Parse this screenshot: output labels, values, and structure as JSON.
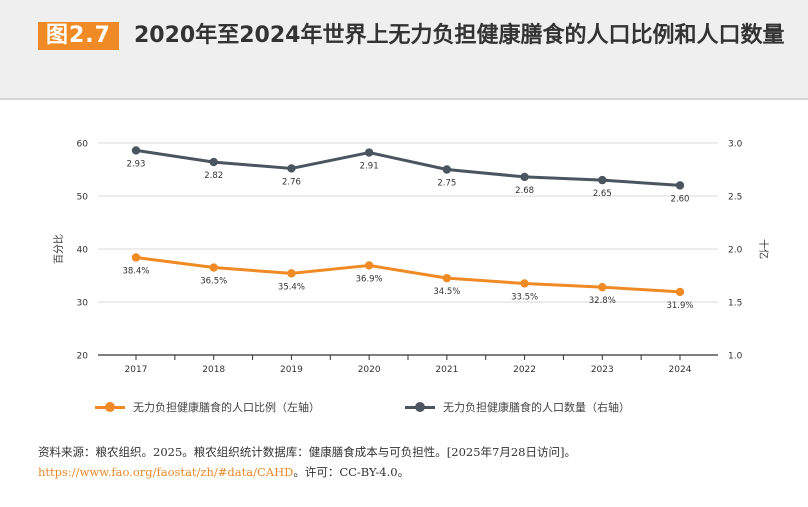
{
  "header": {
    "figure_label": "图2.7",
    "title": "2020年至2024年世界上无力负担健康膳食的人口比例和人口数量"
  },
  "colors": {
    "accent": "#f08a24",
    "percent_series": "#f08a24",
    "count_series": "#4a5560",
    "grid": "#d9d9d9",
    "axis": "#333333"
  },
  "chart_data": {
    "type": "line",
    "categories": [
      "2017",
      "2018",
      "2019",
      "2020",
      "2021",
      "2022",
      "2023",
      "2024"
    ],
    "y_left": {
      "label": "百分比",
      "ticks": [
        "20",
        "30",
        "40",
        "50",
        "60"
      ],
      "range": [
        20,
        60
      ]
    },
    "y_right": {
      "label": "十亿",
      "ticks": [
        "1.0",
        "1.5",
        "2.0",
        "2.5",
        "3.0"
      ],
      "range": [
        1.0,
        3.0
      ]
    },
    "series": [
      {
        "name": "无力负担健康膳食的人口比例（左轴）",
        "axis": "left",
        "values": [
          38.4,
          36.5,
          35.4,
          36.9,
          34.5,
          33.5,
          32.8,
          31.9
        ],
        "labels": [
          "38.4%",
          "36.5%",
          "35.4%",
          "36.9%",
          "34.5%",
          "33.5%",
          "32.8%",
          "31.9%"
        ]
      },
      {
        "name": "无力负担健康膳食的人口数量（右轴）",
        "axis": "right",
        "values": [
          2.93,
          2.82,
          2.76,
          2.91,
          2.75,
          2.68,
          2.65,
          2.6
        ],
        "labels": [
          "2.93",
          "2.82",
          "2.76",
          "2.91",
          "2.75",
          "2.68",
          "2.65",
          "2.60"
        ]
      }
    ]
  },
  "legend": {
    "percent": "无力负担健康膳食的人口比例（左轴）",
    "count": "无力负担健康膳食的人口数量（右轴）"
  },
  "source": {
    "text": "资料来源：粮农组织。2025。粮农组织统计数据库：健康膳食成本与可负担性。[2025年7月28日访问]。",
    "link": "https://www.fao.org/faostat/zh/#data/CAHD",
    "license": "。许可：CC-BY-4.0。"
  }
}
